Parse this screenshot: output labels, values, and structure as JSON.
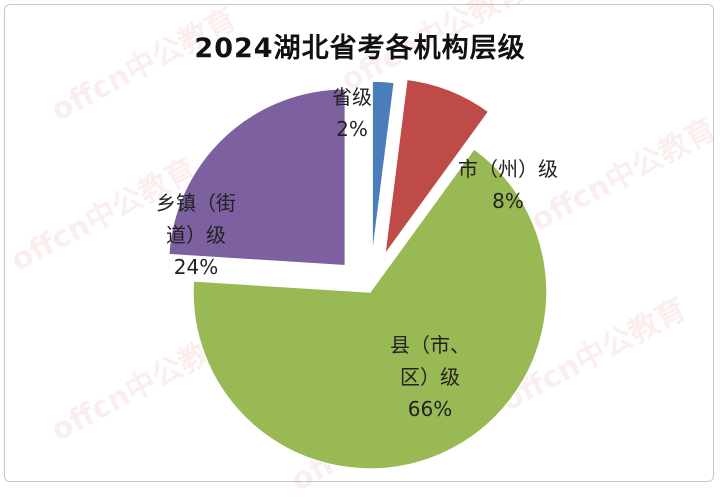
{
  "watermark_text": "offcn中公教育",
  "chart_data": {
    "type": "pie",
    "title": "2024湖北省考各机构层级",
    "slices": [
      {
        "label_lines": [
          "省级"
        ],
        "value_label": "2%",
        "value": 2,
        "color": "#4a7ebb"
      },
      {
        "label_lines": [
          "市（州）级"
        ],
        "value_label": "8%",
        "value": 8,
        "color": "#be4b48"
      },
      {
        "label_lines": [
          "县（市、",
          "区）级"
        ],
        "value_label": "66%",
        "value": 66,
        "color": "#98b954"
      },
      {
        "label_lines": [
          "乡镇（街",
          "道）级"
        ],
        "value_label": "24%",
        "value": 24,
        "color": "#7d60a0"
      }
    ],
    "legend": "none",
    "exploded": true
  }
}
